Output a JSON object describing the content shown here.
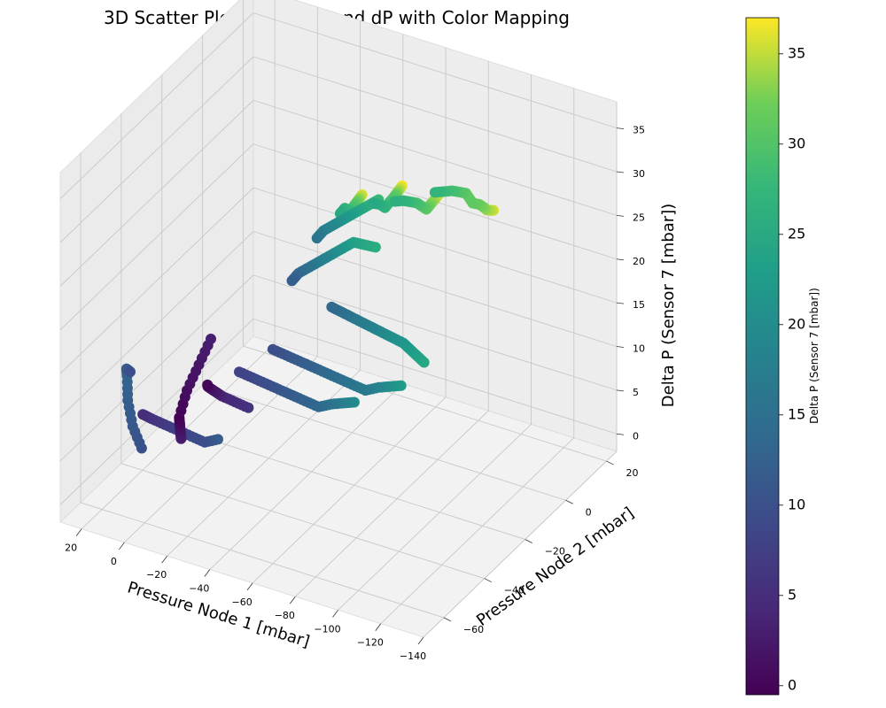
{
  "chart_data": {
    "type": "scatter",
    "title": "3D Scatter Plot of P1, P2, and dP with Color Mapping",
    "xlabel": "Pressure Node 1 [mbar]",
    "ylabel": "Pressure Node 2 [mbar]",
    "zlabel": "Delta P (Sensor 7 [mbar])",
    "colorbar_label": "Delta P (Sensor 7 [mbar])",
    "colormap": "viridis",
    "xlim": [
      -140,
      30
    ],
    "ylim": [
      -70,
      25
    ],
    "zlim": [
      -2,
      38
    ],
    "clim": [
      -0.5,
      37
    ],
    "x_ticks": [
      "−140",
      "−120",
      "−100",
      "−80",
      "−60",
      "−40",
      "−20",
      "0",
      "20"
    ],
    "y_ticks": [
      "−60",
      "−40",
      "−20",
      "0",
      "20"
    ],
    "z_ticks": [
      "0",
      "5",
      "10",
      "15",
      "20",
      "25",
      "30",
      "35"
    ],
    "colorbar_ticks": [
      "0",
      "5",
      "10",
      "15",
      "20",
      "25",
      "30",
      "35"
    ],
    "grid": true,
    "series": [
      {
        "points": [
          [
            -130,
            -25,
            36
          ],
          [
            -126,
            -22,
            35
          ],
          [
            -121,
            -19,
            34
          ],
          [
            -116,
            -15,
            33
          ],
          [
            -110,
            -11,
            32
          ],
          [
            -104,
            -8,
            31
          ],
          [
            -98,
            -5,
            31
          ],
          [
            -92,
            -2,
            30
          ],
          [
            -86,
            1,
            29
          ],
          [
            -80,
            3,
            28
          ],
          [
            -74,
            5,
            27
          ]
        ]
      },
      {
        "points": [
          [
            -108,
            -28,
            37
          ],
          [
            -102,
            -24,
            35
          ],
          [
            -96,
            -20,
            33
          ],
          [
            -90,
            -16,
            31
          ],
          [
            -84,
            -12,
            30
          ],
          [
            -78,
            -8,
            29
          ],
          [
            -72,
            -5,
            28
          ],
          [
            -66,
            -2,
            27
          ],
          [
            -60,
            0,
            26
          ]
        ]
      },
      {
        "points": [
          [
            -92,
            -30,
            37
          ],
          [
            -86,
            -25,
            35
          ],
          [
            -80,
            -20,
            33
          ],
          [
            -74,
            -15,
            31
          ],
          [
            -68,
            -11,
            29
          ],
          [
            -62,
            -7,
            27
          ],
          [
            -56,
            -3,
            26
          ],
          [
            -50,
            0,
            25
          ]
        ]
      },
      {
        "points": [
          [
            -78,
            -35,
            36
          ],
          [
            -72,
            -30,
            34
          ],
          [
            -66,
            -25,
            32
          ],
          [
            -60,
            -20,
            30
          ],
          [
            -54,
            -16,
            28
          ],
          [
            -48,
            -12,
            27
          ],
          [
            -42,
            -8,
            25
          ]
        ]
      },
      {
        "points": [
          [
            -126,
            -55,
            25
          ],
          [
            -118,
            -50,
            24
          ],
          [
            -110,
            -45,
            23
          ],
          [
            -102,
            -40,
            22
          ],
          [
            -94,
            -36,
            21
          ],
          [
            -86,
            -32,
            20
          ],
          [
            -78,
            -28,
            19
          ],
          [
            -70,
            -24,
            18
          ],
          [
            -62,
            -20,
            17
          ],
          [
            -54,
            -16,
            16
          ],
          [
            -46,
            -12,
            15
          ],
          [
            -38,
            -8,
            14
          ]
        ]
      },
      {
        "points": [
          [
            -120,
            -60,
            23
          ],
          [
            -110,
            -55,
            21
          ],
          [
            -100,
            -50,
            19
          ],
          [
            -90,
            -46,
            17
          ],
          [
            -80,
            -42,
            16
          ],
          [
            -70,
            -38,
            15
          ],
          [
            -60,
            -34,
            14
          ],
          [
            -50,
            -30,
            13
          ],
          [
            -40,
            -26,
            12
          ],
          [
            -30,
            -22,
            11
          ],
          [
            -20,
            -18,
            10
          ]
        ]
      },
      {
        "points": [
          [
            -100,
            -62,
            20
          ],
          [
            -90,
            -57,
            18
          ],
          [
            -80,
            -52,
            16
          ],
          [
            -70,
            -48,
            14
          ],
          [
            -60,
            -44,
            13
          ],
          [
            -50,
            -40,
            12
          ],
          [
            -40,
            -36,
            11
          ],
          [
            -30,
            -32,
            10
          ],
          [
            -20,
            -28,
            9
          ],
          [
            -10,
            -24,
            8
          ]
        ]
      },
      {
        "points": [
          [
            -70,
            -20,
            26
          ],
          [
            -62,
            -17,
            25
          ],
          [
            -54,
            -14,
            24
          ],
          [
            -46,
            -11,
            22
          ],
          [
            -38,
            -8,
            20
          ],
          [
            -30,
            -5,
            18
          ],
          [
            -22,
            -2,
            16
          ],
          [
            -14,
            1,
            14
          ],
          [
            -8,
            4,
            12
          ]
        ]
      },
      {
        "points": [
          [
            -60,
            -8,
            28
          ],
          [
            -52,
            -5,
            26
          ],
          [
            -44,
            -2,
            24
          ],
          [
            -36,
            1,
            22
          ],
          [
            -28,
            4,
            20
          ],
          [
            -20,
            7,
            18
          ],
          [
            -14,
            10,
            16
          ]
        ]
      },
      {
        "points": [
          [
            -40,
            -66,
            12
          ],
          [
            -30,
            -62,
            10
          ],
          [
            -20,
            -58,
            9
          ],
          [
            -10,
            -54,
            8
          ],
          [
            0,
            -50,
            7
          ],
          [
            10,
            -46,
            6
          ],
          [
            18,
            -42,
            5
          ]
        ]
      },
      {
        "points": [
          [
            -20,
            -30,
            6
          ],
          [
            -10,
            -26,
            5
          ],
          [
            0,
            -22,
            4
          ],
          [
            6,
            -18,
            3
          ],
          [
            12,
            -14,
            2
          ],
          [
            18,
            -10,
            1
          ],
          [
            22,
            -6,
            0
          ]
        ]
      },
      {
        "points": [
          [
            2,
            -40,
            3
          ],
          [
            8,
            -34,
            2
          ],
          [
            14,
            -28,
            1
          ],
          [
            20,
            -22,
            0
          ],
          [
            24,
            -14,
            1
          ],
          [
            26,
            -6,
            2
          ],
          [
            28,
            2,
            3
          ]
        ]
      },
      {
        "points": [
          [
            -10,
            -72,
            10
          ],
          [
            -2,
            -68,
            11
          ],
          [
            6,
            -62,
            12
          ],
          [
            12,
            -56,
            13
          ],
          [
            18,
            -50,
            12
          ],
          [
            22,
            -44,
            10
          ]
        ]
      }
    ]
  }
}
